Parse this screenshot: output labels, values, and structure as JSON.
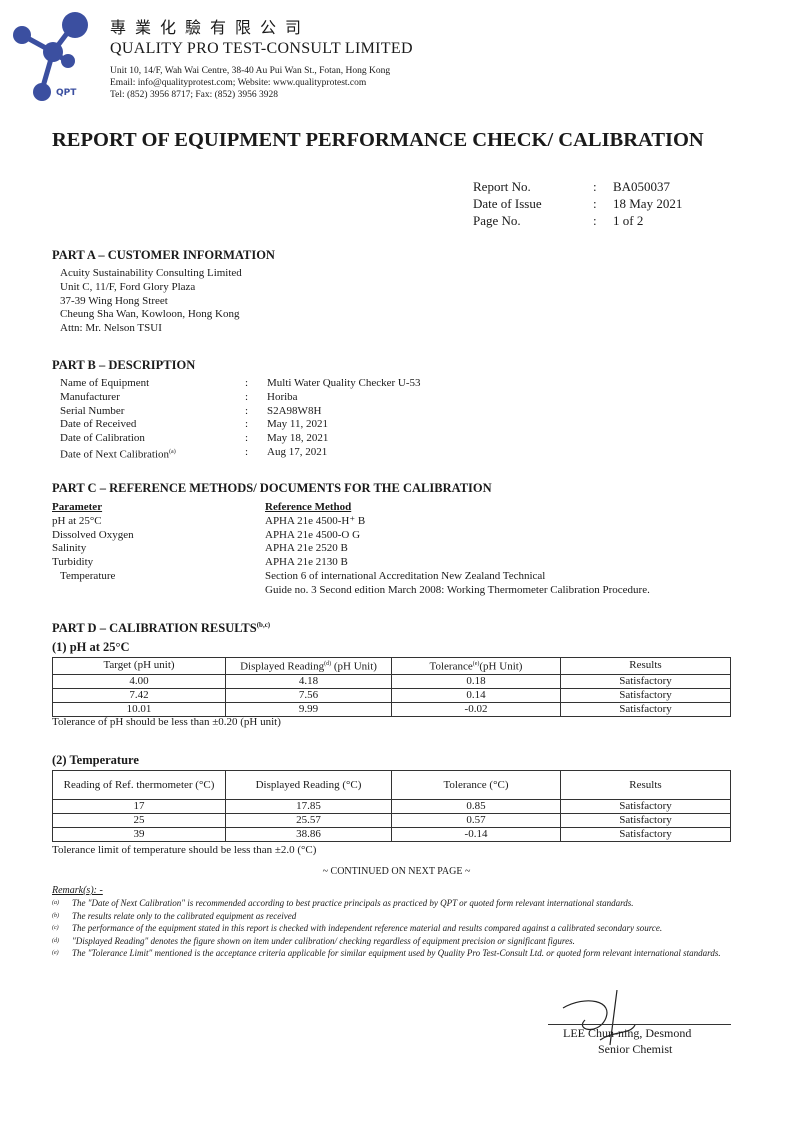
{
  "company": {
    "name_cn": "專業化驗有限公司",
    "name_en": "QUALITY PRO TEST-CONSULT LIMITED",
    "address": "Unit 10, 14/F, Wah Wai Centre, 38-40 Au Pui Wan St., Fotan, Hong Kong",
    "contact": "Email: info@qualityprotest.com; Website: www.qualityprotest.com",
    "phone": "Tel: (852) 3956 8717; Fax: (852) 3956 3928",
    "logo_text": "QPT",
    "logo_color": "#3b4fa0"
  },
  "title": "REPORT OF EQUIPMENT PERFORMANCE CHECK/ CALIBRATION",
  "meta": [
    {
      "label": "Report No.",
      "value": "BA050037"
    },
    {
      "label": "Date of Issue",
      "value": "18 May 2021"
    },
    {
      "label": "Page No.",
      "value": "1 of 2"
    }
  ],
  "part_a": {
    "heading": "PART A – CUSTOMER INFORMATION",
    "lines": [
      "Acuity Sustainability Consulting Limited",
      "Unit C, 11/F, Ford Glory Plaza",
      "37-39 Wing Hong Street",
      "Cheung Sha Wan, Kowloon, Hong Kong",
      "Attn: Mr. Nelson TSUI"
    ]
  },
  "part_b": {
    "heading": "PART B – DESCRIPTION",
    "rows": [
      {
        "label": "Name of Equipment",
        "value": "Multi Water Quality Checker U-53"
      },
      {
        "label": "Manufacturer",
        "value": "Horiba"
      },
      {
        "label": "Serial Number",
        "value": "S2A98W8H"
      },
      {
        "label": "Date of Received",
        "value": "May 11, 2021"
      },
      {
        "label": "Date of Calibration",
        "value": "May 18, 2021"
      },
      {
        "label": "Date of Next Calibration",
        "sup": "(a)",
        "value": "Aug 17, 2021"
      }
    ]
  },
  "part_c": {
    "heading": "PART C – REFERENCE METHODS/ DOCUMENTS FOR THE CALIBRATION",
    "col1": "Parameter",
    "col2": "Reference Method",
    "rows": [
      {
        "p": "pH at 25°C",
        "m": "APHA 21e 4500-H⁺ B"
      },
      {
        "p": "Dissolved Oxygen",
        "m": "APHA 21e 4500-O G"
      },
      {
        "p": "Salinity",
        "m": "APHA 21e 2520 B"
      },
      {
        "p": "Turbidity",
        "m": "APHA 21e 2130 B"
      },
      {
        "p": "Temperature",
        "m": "Section 6 of international Accreditation New Zealand Technical"
      },
      {
        "p": "",
        "m": "Guide no. 3 Second edition March 2008: Working Thermometer Calibration Procedure."
      }
    ]
  },
  "part_d": {
    "heading": "PART D – CALIBRATION RESULTS",
    "heading_sup": "(b,c)",
    "ph": {
      "title": "(1)  pH at 25°C",
      "headers": [
        "Target (pH unit)",
        "Displayed Reading",
        "(d)",
        " (pH Unit)",
        "Tolerance",
        "(e)",
        "(pH Unit)",
        "Results"
      ],
      "rows": [
        [
          "4.00",
          "4.18",
          "0.18",
          "Satisfactory"
        ],
        [
          "7.42",
          "7.56",
          "0.14",
          "Satisfactory"
        ],
        [
          "10.01",
          "9.99",
          "-0.02",
          "Satisfactory"
        ]
      ],
      "note": "Tolerance of pH should be less than ±0.20 (pH unit)"
    },
    "temp": {
      "title": "(2)  Temperature",
      "headers": [
        "Reading of Ref. thermometer (°C)",
        "Displayed Reading (°C)",
        "Tolerance (°C)",
        "Results"
      ],
      "rows": [
        [
          "17",
          "17.85",
          "0.85",
          "Satisfactory"
        ],
        [
          "25",
          "25.57",
          "0.57",
          "Satisfactory"
        ],
        [
          "39",
          "38.86",
          "-0.14",
          "Satisfactory"
        ]
      ],
      "note": "Tolerance limit of temperature should be less than ±2.0 (°C)"
    }
  },
  "continued": "~ CONTINUED ON NEXT PAGE ~",
  "remarks": {
    "heading": "Remark(s): -",
    "items": [
      {
        "m": "(a)",
        "t": "The \"Date of Next Calibration\" is recommended according to best practice principals as practiced by QPT or quoted form relevant international standards."
      },
      {
        "m": "(b)",
        "t": "The results relate only to the calibrated equipment as received"
      },
      {
        "m": "(c)",
        "t": "The performance of the equipment stated in this report is checked with independent reference material and results compared against a calibrated secondary source."
      },
      {
        "m": "(d)",
        "t": "\"Displayed Reading\" denotes the figure shown on item under calibration/ checking regardless of equipment precision or significant figures."
      },
      {
        "m": "(e)",
        "t": "The \"Tolerance Limit\" mentioned is the acceptance criteria applicable for similar equipment used by Quality Pro Test-Consult Ltd. or quoted form relevant international standards."
      }
    ]
  },
  "signature": {
    "name": "LEE Chun-ning, Desmond",
    "position": "Senior Chemist"
  }
}
